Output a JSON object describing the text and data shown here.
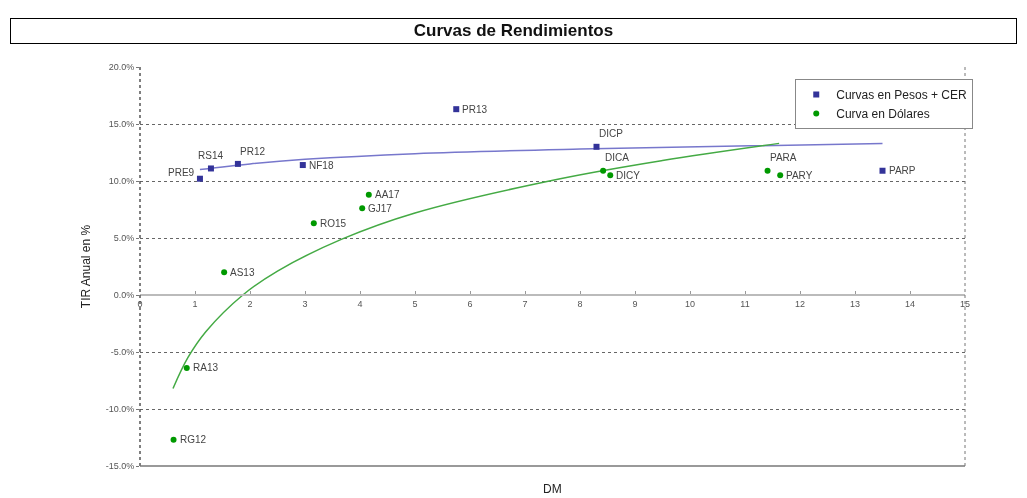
{
  "chart_data": {
    "type": "scatter",
    "title": "Curvas de Rendimientos",
    "xlabel": "DM",
    "ylabel": "TIR Anual en %",
    "xlim": [
      0,
      15
    ],
    "xticks": [
      0,
      1,
      2,
      3,
      4,
      5,
      6,
      7,
      8,
      9,
      10,
      11,
      12,
      13,
      14,
      15
    ],
    "ylim": [
      -15,
      20
    ],
    "yticks": [
      {
        "value": -15,
        "label": "-15.0%"
      },
      {
        "value": -10,
        "label": "-10.0%"
      },
      {
        "value": -5,
        "label": "-5.0%"
      },
      {
        "value": 0,
        "label": "0.0%"
      },
      {
        "value": 5,
        "label": "5.0%"
      },
      {
        "value": 10,
        "label": "10.0%"
      },
      {
        "value": 15,
        "label": "15.0%"
      },
      {
        "value": 20,
        "label": "20.0%"
      }
    ],
    "grid": "y",
    "legend": "top right",
    "series": [
      {
        "name": "Curvas en Pesos + CER",
        "color": "#333399",
        "marker": "square",
        "x": [
          1.09,
          1.29,
          1.78,
          2.96,
          5.75,
          8.3,
          13.5
        ],
        "values": [
          10.2,
          11.1,
          11.5,
          11.4,
          16.3,
          13.0,
          10.9
        ]
      },
      {
        "name": "Curva en Dólares",
        "color": "#009900",
        "marker": "circle",
        "x": [
          1.53,
          3.16,
          4.04,
          4.16,
          8.42,
          8.55,
          11.41,
          11.64,
          0.85,
          0.61
        ],
        "values": [
          2.0,
          6.3,
          7.6,
          8.8,
          10.9,
          10.5,
          10.9,
          10.5,
          -6.4,
          -12.7
        ]
      },
      {
        "type": "line",
        "color": "#7777cc",
        "x": [
          1.09,
          2,
          3,
          5,
          8,
          13.5
        ],
        "values": [
          11.0,
          11.5,
          11.9,
          12.4,
          12.8,
          13.3
        ]
      },
      {
        "type": "line",
        "color": "#44aa44",
        "x": [
          0.6,
          0.87,
          1.2,
          1.87,
          2.5,
          3.67,
          5,
          7.64,
          9.5,
          11.62
        ],
        "values": [
          -8.2,
          -5.5,
          -3.2,
          0.0,
          2.1,
          4.9,
          7.2,
          10.2,
          11.8,
          13.3
        ]
      }
    ],
    "annotations": [
      {
        "text": "PRE9",
        "x": 1.09,
        "y": 10.2
      },
      {
        "text": "RS14",
        "x": 1.29,
        "y": 11.1
      },
      {
        "text": "PR12",
        "x": 1.78,
        "y": 11.5
      },
      {
        "text": "NF18",
        "x": 2.96,
        "y": 11.4
      },
      {
        "text": "PR13",
        "x": 5.75,
        "y": 16.3
      },
      {
        "text": "DICP",
        "x": 8.3,
        "y": 13.0
      },
      {
        "text": "PARP",
        "x": 13.5,
        "y": 10.9
      },
      {
        "text": "AS13",
        "x": 1.53,
        "y": 2.0
      },
      {
        "text": "RO15",
        "x": 3.16,
        "y": 6.3
      },
      {
        "text": "GJ17",
        "x": 4.04,
        "y": 7.6
      },
      {
        "text": "AA17",
        "x": 4.16,
        "y": 8.8
      },
      {
        "text": "DICA",
        "x": 8.42,
        "y": 10.9
      },
      {
        "text": "DICY",
        "x": 8.55,
        "y": 10.5
      },
      {
        "text": "PARA",
        "x": 11.41,
        "y": 10.9
      },
      {
        "text": "PARY",
        "x": 11.64,
        "y": 10.5
      },
      {
        "text": "RA13",
        "x": 0.85,
        "y": -6.4
      },
      {
        "text": "RG12",
        "x": 0.61,
        "y": -12.7
      }
    ]
  }
}
